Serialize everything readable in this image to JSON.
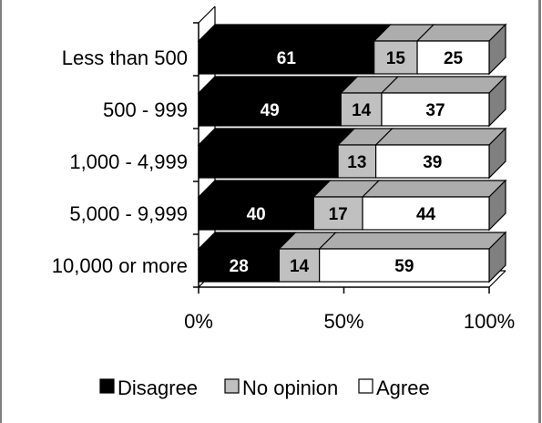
{
  "chart_data": {
    "type": "bar",
    "orientation": "horizontal",
    "stacked": "percent",
    "categories": [
      "Less than 500",
      "500 - 999",
      "1,000 - 4,999",
      "5,000 - 9,999",
      "10,000 or more"
    ],
    "series": [
      {
        "name": "Disagree",
        "values": [
          61,
          49,
          48,
          40,
          28
        ],
        "labels": [
          "61",
          "49",
          "",
          "40",
          "28"
        ],
        "color": "#000000",
        "label_color": "#ffffff"
      },
      {
        "name": "No opinion",
        "values": [
          15,
          14,
          13,
          17,
          14
        ],
        "labels": [
          "15",
          "14",
          "13",
          "17",
          "14"
        ],
        "color": "#c0c0c0",
        "label_color": "#000000"
      },
      {
        "name": "Agree",
        "values": [
          25,
          37,
          39,
          44,
          59
        ],
        "labels": [
          "25",
          "37",
          "39",
          "44",
          "59"
        ],
        "color": "#ffffff",
        "label_color": "#000000"
      }
    ],
    "xlim": [
      0,
      100
    ],
    "xticks": [
      "0%",
      "50%",
      "100%"
    ],
    "legend_position": "bottom",
    "style": "3d"
  }
}
